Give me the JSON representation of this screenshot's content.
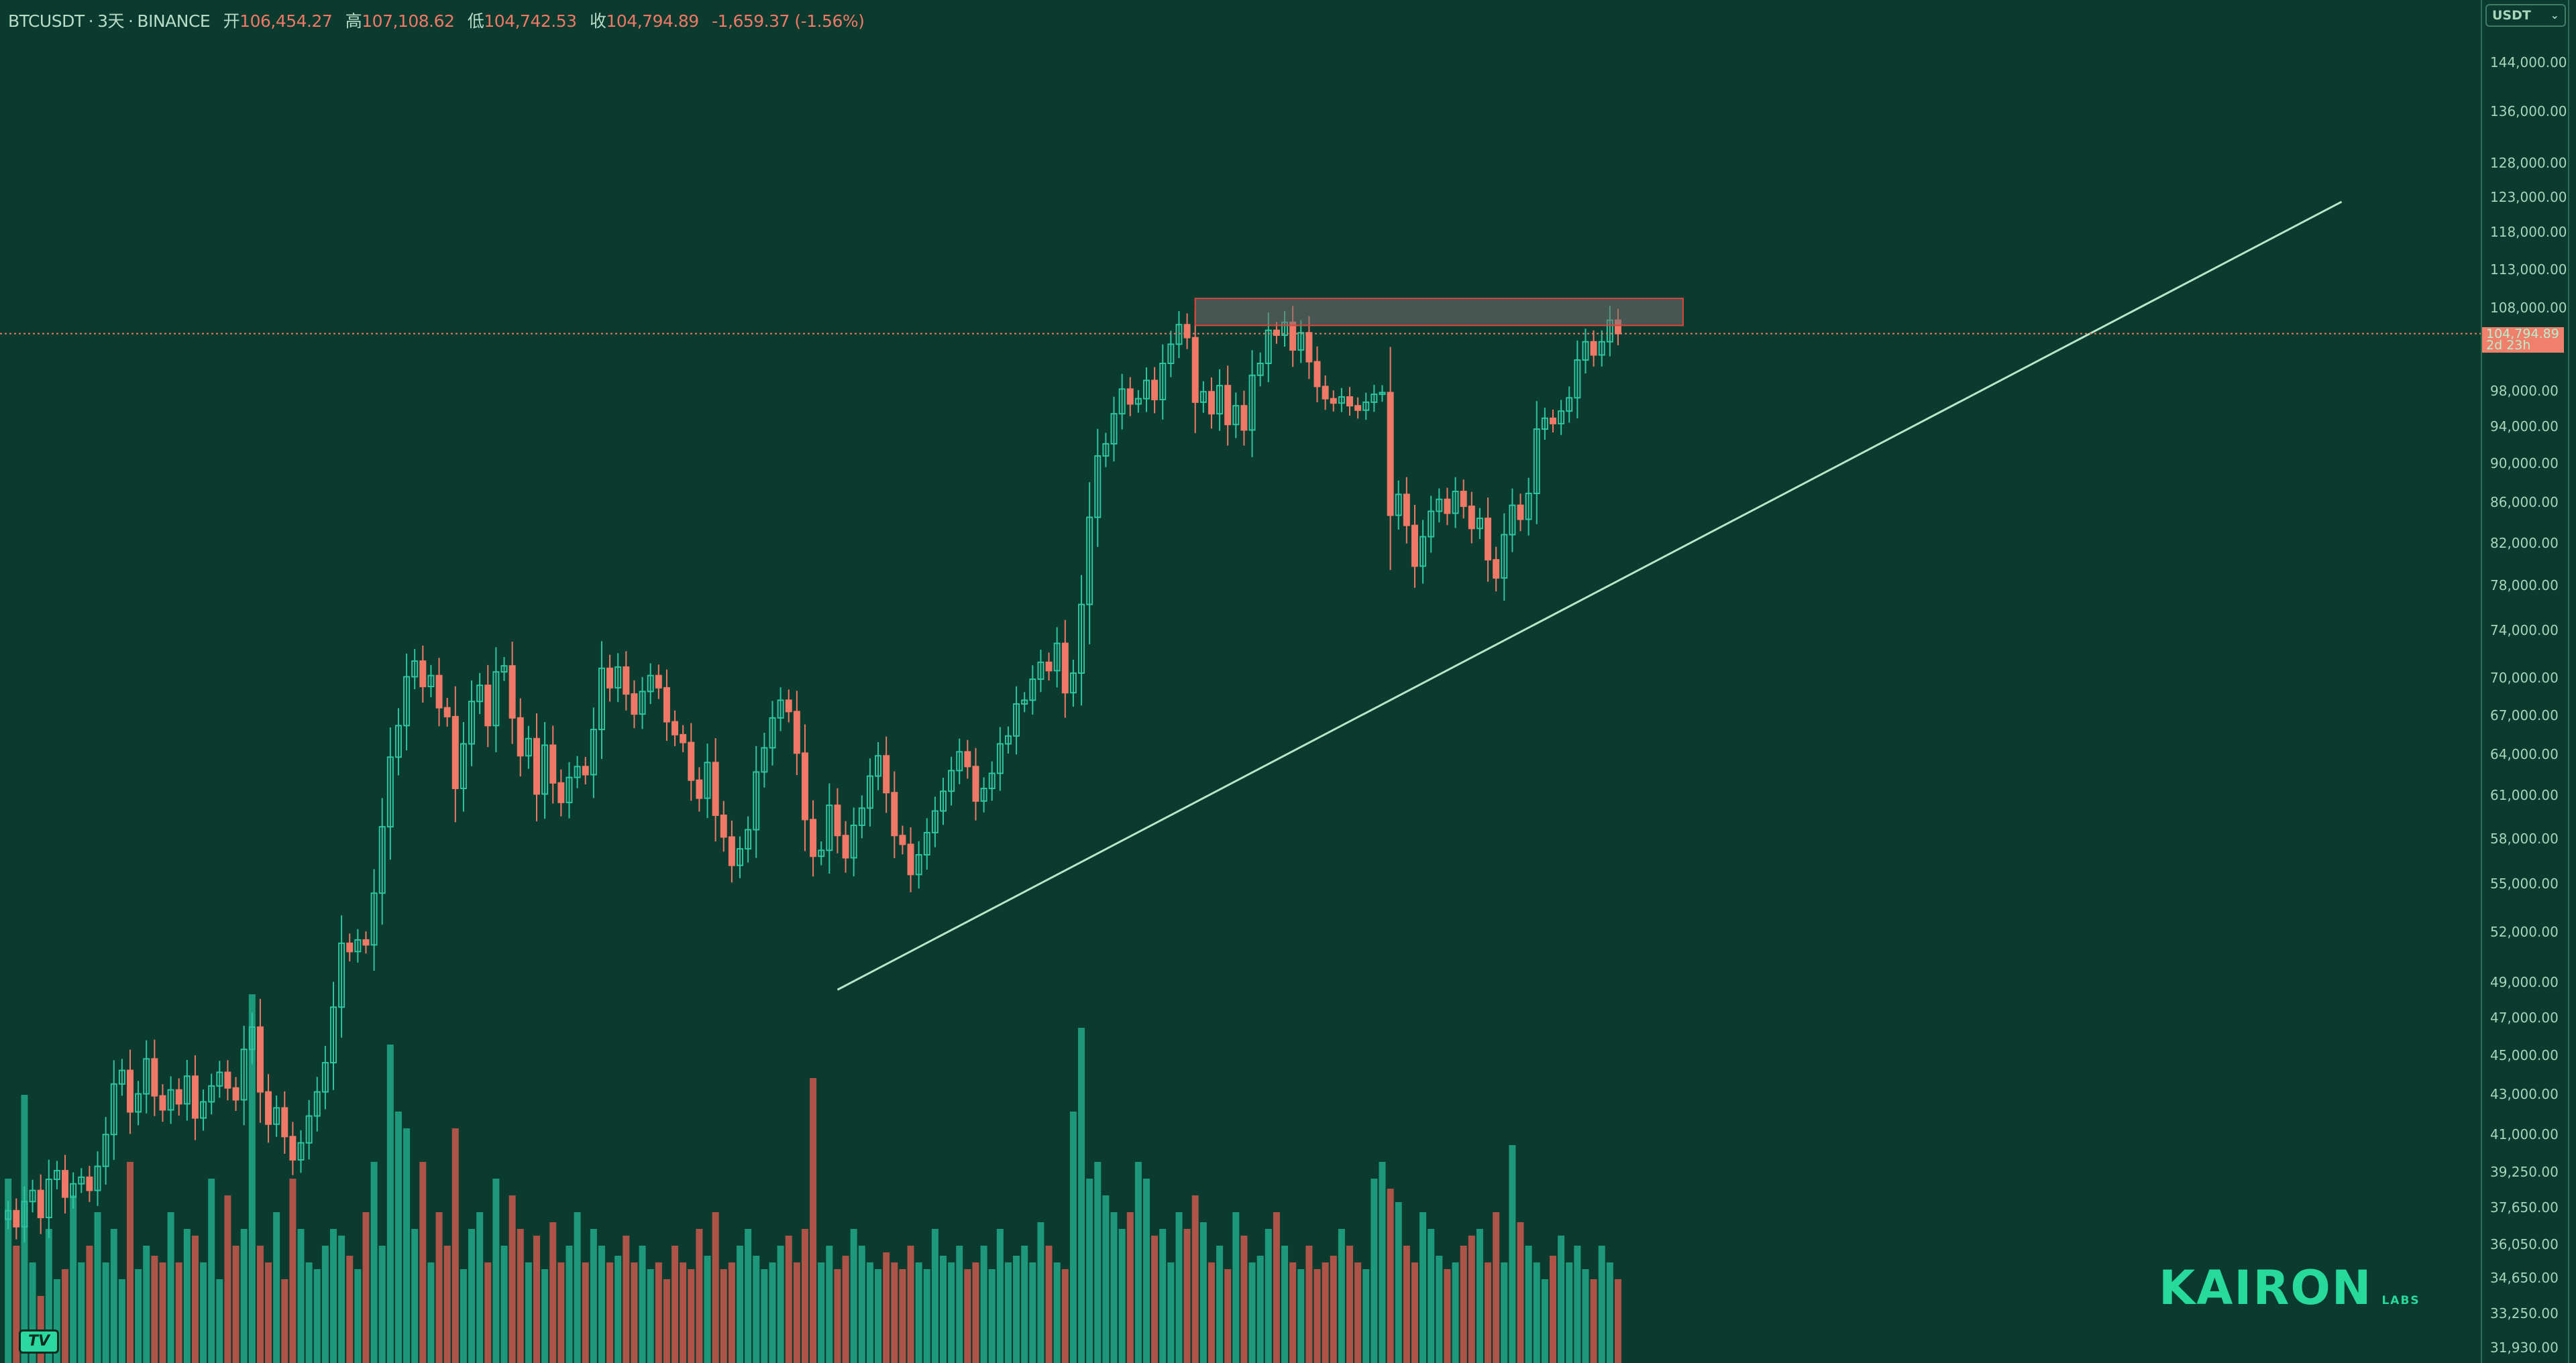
{
  "header": {
    "symbol": "BTCUSDT",
    "interval": "3天",
    "exchange": "BINANCE",
    "open_label": "开",
    "open": "106,454.27",
    "high_label": "高",
    "high": "107,108.62",
    "low_label": "低",
    "low": "104,742.53",
    "close_label": "收",
    "close": "104,794.89",
    "change": "-1,659.37",
    "change_pct": "(-1.56%)"
  },
  "currency_selector": {
    "label": "USDT",
    "icon": "chevron-down-icon"
  },
  "price_label": {
    "price": "104,794.89",
    "countdown": "2d 23h"
  },
  "logo": {
    "name": "KAIRON",
    "sub": "LABS"
  },
  "tv_logo": "TV",
  "colors": {
    "background": "#0b3a2e",
    "up": "#2ec4a0",
    "down": "#f07866",
    "volume_up": "#1fa383",
    "volume_down": "#c0574a",
    "trendline": "#b8e6c8",
    "resistance_box": "#e0443c"
  },
  "chart_data": {
    "type": "candlestick",
    "title": "",
    "y_scale": "log",
    "ylim": [
      31930,
      150000
    ],
    "y_ticks": [
      "144,000.00",
      "136,000.00",
      "128,000.00",
      "123,000.00",
      "118,000.00",
      "113,000.00",
      "108,000.00",
      "98,000.00",
      "94,000.00",
      "90,000.00",
      "86,000.00",
      "82,000.00",
      "78,000.00",
      "74,000.00",
      "70,000.00",
      "67,000.00",
      "64,000.00",
      "61,000.00",
      "58,000.00",
      "55,000.00",
      "52,000.00",
      "49,000.00",
      "47,000.00",
      "45,000.00",
      "43,000.00",
      "41,000.00",
      "39,250.00",
      "37,650.00",
      "36,050.00",
      "34,650.00",
      "33,250.00",
      "31,930.00"
    ],
    "grid": false,
    "close": [
      37500,
      36800,
      37900,
      38400,
      37200,
      38900,
      39300,
      38100,
      38700,
      39000,
      38400,
      39500,
      41000,
      43500,
      44200,
      42100,
      43000,
      44800,
      42900,
      42200,
      43200,
      42500,
      43900,
      41800,
      42600,
      43400,
      44100,
      43300,
      42700,
      45300,
      46500,
      43100,
      41500,
      42300,
      40900,
      39800,
      40600,
      41900,
      43100,
      44600,
      47600,
      51300,
      50800,
      51500,
      51200,
      54400,
      58800,
      63800,
      66200,
      70100,
      71400,
      69300,
      70200,
      67600,
      66900,
      61500,
      64800,
      68100,
      69400,
      66200,
      70500,
      71000,
      66800,
      63900,
      65200,
      61100,
      64700,
      61900,
      60500,
      62300,
      63100,
      62500,
      65900,
      70800,
      69200,
      70900,
      68700,
      67100,
      68900,
      70200,
      69200,
      66500,
      65500,
      64900,
      62100,
      60800,
      63400,
      59600,
      58100,
      56200,
      57300,
      58600,
      62700,
      64500,
      66800,
      68200,
      67300,
      64100,
      59300,
      56800,
      57200,
      60300,
      58200,
      56700,
      58900,
      60100,
      62400,
      63900,
      61200,
      58200,
      57600,
      55600,
      56900,
      58400,
      59900,
      61300,
      62800,
      64200,
      63100,
      60600,
      61500,
      62600,
      64800,
      65400,
      67900,
      68200,
      69900,
      71300,
      70600,
      72900,
      68800,
      70400,
      76300,
      84500,
      90800,
      92100,
      95400,
      98200,
      96500,
      97100,
      99200,
      97000,
      101200,
      103500,
      105900,
      104300,
      96700,
      97900,
      95400,
      98600,
      94200,
      96300,
      93600,
      99800,
      101200,
      105200,
      104600,
      106200,
      102800,
      104900,
      101400,
      98500,
      97100,
      96600,
      97300,
      96300,
      95800,
      96700,
      97600,
      97800,
      84700,
      86800,
      83700,
      79800,
      82600,
      85100,
      86300,
      84900,
      87100,
      85600,
      83400,
      84400,
      80400,
      78700,
      82800,
      85700,
      84300,
      86900,
      93700,
      94900,
      94300,
      95700,
      97200,
      101600,
      103800,
      102200,
      103800,
      106454.27,
      104794.89
    ],
    "volume": [
      55,
      35,
      80,
      30,
      20,
      40,
      25,
      28,
      50,
      30,
      35,
      45,
      30,
      40,
      25,
      60,
      28,
      35,
      32,
      30,
      45,
      30,
      40,
      38,
      30,
      55,
      25,
      50,
      35,
      40,
      110,
      35,
      30,
      45,
      25,
      55,
      40,
      30,
      28,
      35,
      40,
      38,
      32,
      28,
      45,
      60,
      35,
      95,
      75,
      70,
      40,
      60,
      30,
      45,
      35,
      70,
      28,
      40,
      45,
      30,
      55,
      35,
      50,
      40,
      30,
      38,
      28,
      42,
      30,
      35,
      45,
      30,
      40,
      35,
      30,
      32,
      38,
      30,
      35,
      28,
      30,
      25,
      35,
      30,
      28,
      40,
      32,
      45,
      28,
      30,
      35,
      40,
      32,
      28,
      30,
      35,
      38,
      30,
      40,
      85,
      30,
      35,
      28,
      32,
      40,
      35,
      30,
      28,
      33,
      30,
      28,
      35,
      30,
      28,
      40,
      32,
      30,
      35,
      28,
      30,
      35,
      28,
      40,
      30,
      32,
      35,
      30,
      42,
      35,
      30,
      28,
      75,
      100,
      55,
      60,
      50,
      45,
      40,
      45,
      60,
      55,
      38,
      40,
      30,
      45,
      40,
      50,
      42,
      30,
      35,
      28,
      45,
      38,
      30,
      32,
      40,
      45,
      35,
      30,
      28,
      35,
      28,
      30,
      32,
      40,
      35,
      30,
      28,
      55,
      60,
      52,
      48,
      35,
      30,
      45,
      40,
      32,
      28,
      30,
      35,
      38,
      40,
      30,
      45,
      30,
      65,
      42,
      35,
      30,
      25,
      32,
      38,
      30,
      35,
      28,
      25,
      35,
      30,
      25
    ],
    "annotations": [
      {
        "type": "trendline",
        "from_index": 102,
        "from_price": 48580,
        "to_index": 287,
        "to_price": 122300
      },
      {
        "type": "resistance_box",
        "from_index": 146,
        "to_index": 206,
        "low": 105800,
        "high": 109200
      },
      {
        "type": "last_price_line",
        "price": 104794.89
      }
    ]
  }
}
